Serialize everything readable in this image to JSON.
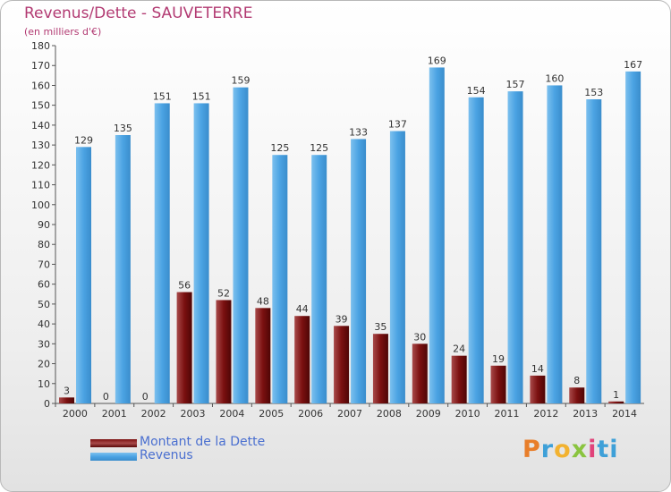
{
  "header": {
    "title": "Revenus/Dette - SAUVETERRE",
    "subtitle": "(en milliers d'€)"
  },
  "legend": {
    "debt_label": "Montant de la Dette",
    "revenue_label": "Revenus"
  },
  "brand": {
    "letters": [
      "P",
      "r",
      "o",
      "x",
      "i",
      "ti"
    ]
  },
  "colors": {
    "debt": "#7b1010",
    "debt_light": "#a84a4a",
    "revenue": "#4ba3e3",
    "revenue_light": "#7cc0ee",
    "axis_text": "#333333"
  },
  "chart_data": {
    "type": "bar",
    "title": "Revenus/Dette - SAUVETERRE",
    "ylabel": "(en milliers d'€)",
    "xlabel": "",
    "categories": [
      "2000",
      "2001",
      "2002",
      "2003",
      "2004",
      "2005",
      "2006",
      "2007",
      "2008",
      "2009",
      "2010",
      "2011",
      "2012",
      "2013",
      "2014"
    ],
    "series": [
      {
        "name": "Montant de la Dette",
        "values": [
          3,
          0,
          0,
          56,
          52,
          48,
          44,
          39,
          35,
          30,
          24,
          19,
          14,
          8,
          1
        ]
      },
      {
        "name": "Revenus",
        "values": [
          129,
          135,
          151,
          151,
          159,
          125,
          125,
          133,
          137,
          169,
          154,
          157,
          160,
          153,
          167
        ]
      }
    ],
    "ylim": [
      0,
      180
    ],
    "yticks": [
      0,
      10,
      20,
      30,
      40,
      50,
      60,
      70,
      80,
      90,
      100,
      110,
      120,
      130,
      140,
      150,
      160,
      170,
      180
    ],
    "grid": false,
    "legend_position": "bottom-left"
  }
}
